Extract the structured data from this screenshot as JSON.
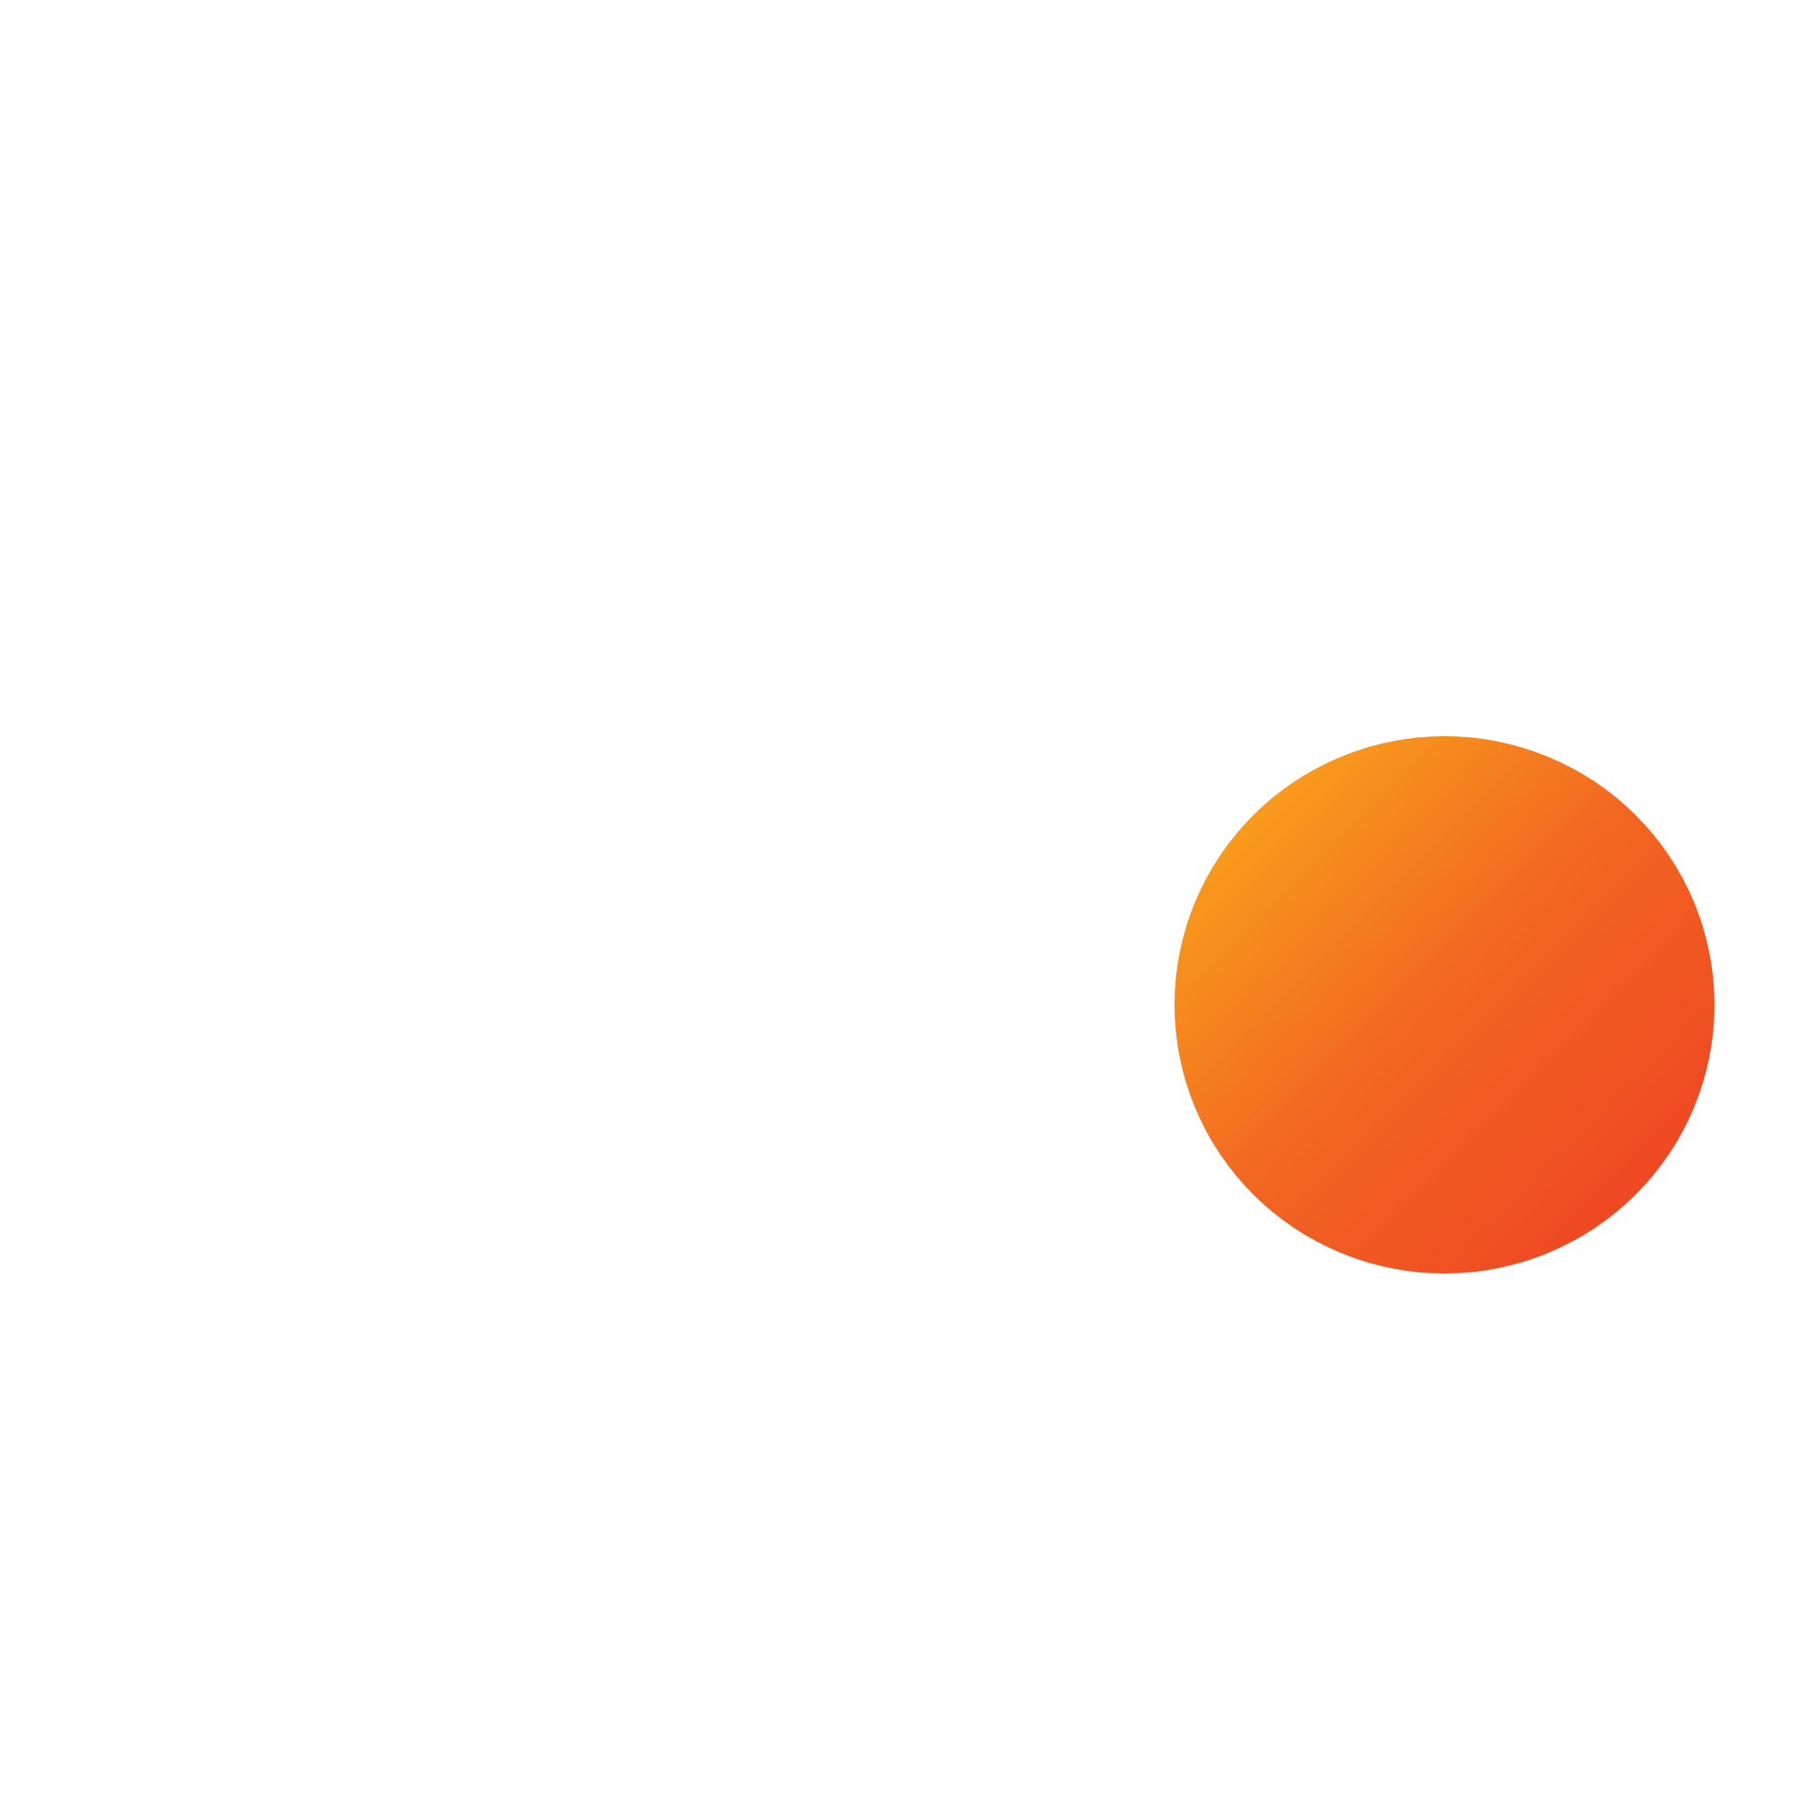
{
  "shape": {
    "icon": "gradient-circle",
    "colors": {
      "start": "#F9A51A",
      "mid": "#F26522",
      "end": "#EE4323"
    }
  }
}
